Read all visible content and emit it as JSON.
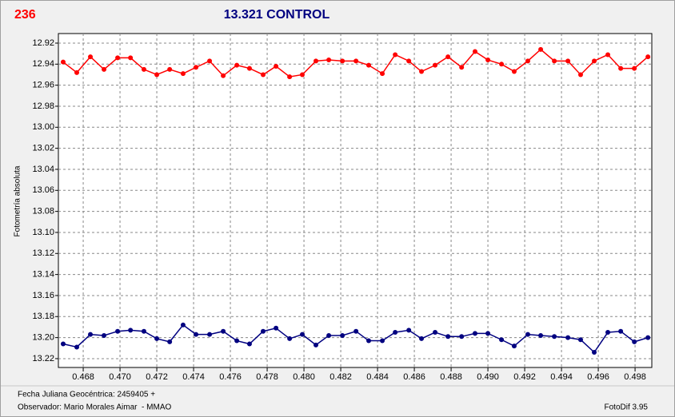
{
  "chart_data": {
    "type": "line",
    "title": "13.321 CONTROL",
    "label": "236",
    "y_label": "Fotometría absoluta",
    "x": [
      0.46691,
      0.46765,
      0.46839,
      0.46913,
      0.46987,
      0.47057,
      0.4713,
      0.472,
      0.4727,
      0.47343,
      0.47413,
      0.47487,
      0.47561,
      0.47635,
      0.47704,
      0.47778,
      0.47848,
      0.47922,
      0.47991,
      0.48065,
      0.48135,
      0.48209,
      0.48283,
      0.48352,
      0.48426,
      0.48496,
      0.4857,
      0.48639,
      0.48713,
      0.48783,
      0.48857,
      0.4893,
      0.49,
      0.49074,
      0.49143,
      0.49217,
      0.49287,
      0.49361,
      0.49435,
      0.49504,
      0.49578,
      0.49652,
      0.49722,
      0.49796,
      0.4987
    ],
    "series": [
      {
        "color": "#ff0000",
        "values": [
          12.938,
          12.948,
          12.933,
          12.945,
          12.934,
          12.934,
          12.945,
          12.95,
          12.945,
          12.949,
          12.943,
          12.937,
          12.951,
          12.941,
          12.944,
          12.95,
          12.942,
          12.952,
          12.95,
          12.937,
          12.936,
          12.937,
          12.937,
          12.941,
          12.949,
          12.931,
          12.937,
          12.947,
          12.941,
          12.933,
          12.943,
          12.928,
          12.936,
          12.94,
          12.947,
          12.937,
          12.926,
          12.937,
          12.937,
          12.95,
          12.937,
          12.931,
          12.944,
          12.944,
          12.933
        ]
      },
      {
        "color": "#000080",
        "values": [
          13.206,
          13.209,
          13.197,
          13.198,
          13.194,
          13.193,
          13.194,
          13.201,
          13.204,
          13.188,
          13.197,
          13.197,
          13.194,
          13.203,
          13.206,
          13.194,
          13.191,
          13.201,
          13.197,
          13.207,
          13.198,
          13.198,
          13.194,
          13.203,
          13.203,
          13.195,
          13.193,
          13.201,
          13.195,
          13.199,
          13.199,
          13.196,
          13.196,
          13.202,
          13.208,
          13.197,
          13.198,
          13.199,
          13.2,
          13.202,
          13.214,
          13.195,
          13.194,
          13.204,
          13.2
        ]
      }
    ],
    "xlim": [
      0.46665,
      0.49891
    ],
    "ylim": [
      13.2284,
      12.9109
    ],
    "xticks": [
      0.468,
      {
        "value": 0.47,
        "label": "0.470"
      },
      0.472,
      0.474,
      0.476,
      0.478,
      {
        "value": 0.48,
        "label": "0.480"
      },
      0.482,
      0.484,
      0.486,
      0.488,
      {
        "value": 0.49,
        "label": "0.490"
      },
      0.492,
      0.494,
      0.496,
      0.498
    ],
    "yticks": [
      12.92,
      12.94,
      12.96,
      12.98,
      {
        "value": 13,
        "label": "13.00"
      },
      13.02,
      13.04,
      13.06,
      13.08,
      {
        "value": 13.1,
        "label": "13.10"
      },
      13.12,
      13.14,
      13.16,
      13.18,
      {
        "value": 13.2,
        "label": "13.20"
      },
      13.22
    ],
    "grid": true
  },
  "footer": {
    "date": "Fecha Juliana Geocéntrica: 2459405 +",
    "observer": "Observador: Mario Morales Aimar  - MMAO",
    "software": "FotoDif 3.95"
  }
}
